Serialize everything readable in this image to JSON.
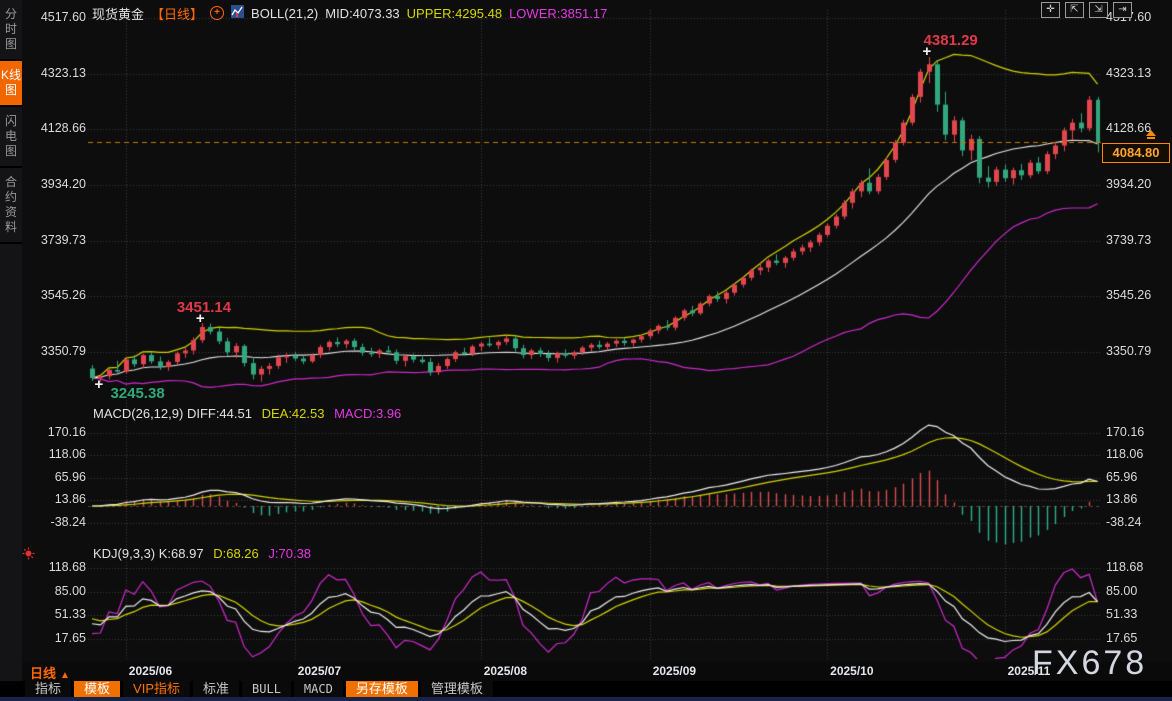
{
  "header": {
    "symbol": "现货黄金",
    "period_tag": "【日线】",
    "boll_title": "BOLL(21,2)",
    "boll_mid": "MID:4073.33",
    "boll_upper": "UPPER:4295.48",
    "boll_lower": "LOWER:3851.17"
  },
  "sidebar": {
    "items": [
      {
        "label": "分时图",
        "active": false
      },
      {
        "label": "K线图",
        "active": true
      },
      {
        "label": "闪电图",
        "active": false
      },
      {
        "label": "合约资料",
        "active": false
      }
    ]
  },
  "axes": {
    "price": [
      "4517.60",
      "4323.13",
      "4128.66",
      "3934.20",
      "3739.73",
      "3545.26",
      "3350.79"
    ],
    "macd": [
      "170.16",
      "118.06",
      "65.96",
      "13.86",
      "-38.24"
    ],
    "kdj": [
      "118.68",
      "85.00",
      "51.33",
      "17.65"
    ]
  },
  "panels": {
    "macd": {
      "title": "MACD(26,12,9)",
      "diff": "DIFF:44.51",
      "dea": "DEA:42.53",
      "macd": "MACD:3.96"
    },
    "kdj": {
      "title": "KDJ(9,3,3)",
      "k": "K:68.97",
      "d": "D:68.26",
      "j": "J:70.38"
    }
  },
  "annotations": {
    "high_label": "4381.29",
    "swing_high_label": "3451.14",
    "swing_low_label": "3245.38",
    "last_price_label": "4084.80"
  },
  "x_axis": {
    "period_label": "日线",
    "period_arrow": "▲",
    "months": [
      "2025/06",
      "2025/07",
      "2025/08",
      "2025/09",
      "2025/10",
      "2025/11"
    ]
  },
  "bottom_bar": {
    "items": [
      {
        "label": "指标",
        "active": false,
        "vip": false,
        "mono": false
      },
      {
        "label": "模板",
        "active": true,
        "vip": false,
        "mono": false
      },
      {
        "label": "VIP指标",
        "active": false,
        "vip": true,
        "mono": false
      },
      {
        "label": "标准",
        "active": false,
        "vip": false,
        "mono": false
      },
      {
        "label": "BULL",
        "active": false,
        "vip": false,
        "mono": true
      },
      {
        "label": "MACD",
        "active": false,
        "vip": false,
        "mono": true
      },
      {
        "label": "另存模板",
        "active": true,
        "vip": false,
        "mono": false
      },
      {
        "label": "管理模板",
        "active": false,
        "vip": false,
        "mono": false
      }
    ]
  },
  "toolbar_icons": [
    "crosshair-icon",
    "zoom-area-left-icon",
    "zoom-area-right-icon",
    "pan-right-icon"
  ],
  "watermark": "FX678",
  "colors": {
    "accent_orange": "#ff6a00",
    "up_candle": "#e2464f",
    "down_candle": "#33a77d",
    "boll_upper_yellow": "#d4d400",
    "boll_mid_white": "#e6e6e6",
    "boll_lower_magenta": "#cc2acc",
    "grid": "#3b3b3b",
    "last_price_line": "#c87800"
  },
  "chart_data": {
    "type": "candlestick",
    "title": "现货黄金 日线 (Spot Gold Daily)",
    "price_gridlines": [
      4517.6,
      4323.13,
      4128.66,
      3934.2,
      3739.73,
      3545.26,
      3350.79
    ],
    "macd_gridlines": [
      170.16,
      118.06,
      65.96,
      13.86,
      -38.24
    ],
    "kdj_gridlines": [
      118.68,
      85.0,
      51.33,
      17.65
    ],
    "months": [
      "2025/06",
      "2025/07",
      "2025/08",
      "2025/09",
      "2025/10",
      "2025/11"
    ],
    "month_start_indices": [
      4,
      24,
      46,
      66,
      87,
      108
    ],
    "boll": {
      "period": 21,
      "mult": 2,
      "mid": 4073.33,
      "upper": 4295.48,
      "lower": 3851.17
    },
    "macd": {
      "params": [
        26,
        12,
        9
      ],
      "diff": 44.51,
      "dea": 42.53,
      "hist": 3.96
    },
    "kdj": {
      "params": [
        9,
        3,
        3
      ],
      "k": 68.97,
      "d": 68.26,
      "j": 70.38
    },
    "last_price": 4084.8,
    "key_points": {
      "high": {
        "index": 99,
        "value": 4381.29
      },
      "swing_high": {
        "index": 13,
        "value": 3451.14
      },
      "swing_low": {
        "index": 1,
        "value": 3245.38
      }
    },
    "ohlc": [
      [
        3293,
        3305,
        3250,
        3260
      ],
      [
        3260,
        3270,
        3245.38,
        3266
      ],
      [
        3266,
        3292,
        3255,
        3288
      ],
      [
        3288,
        3320,
        3278,
        3282
      ],
      [
        3282,
        3330,
        3275,
        3325
      ],
      [
        3325,
        3340,
        3298,
        3308
      ],
      [
        3308,
        3345,
        3295,
        3340
      ],
      [
        3340,
        3352,
        3310,
        3318
      ],
      [
        3318,
        3335,
        3288,
        3298
      ],
      [
        3298,
        3322,
        3285,
        3316
      ],
      [
        3316,
        3352,
        3305,
        3346
      ],
      [
        3346,
        3368,
        3330,
        3356
      ],
      [
        3356,
        3402,
        3342,
        3392
      ],
      [
        3392,
        3451.14,
        3382,
        3438
      ],
      [
        3438,
        3450,
        3412,
        3422
      ],
      [
        3422,
        3436,
        3378,
        3388
      ],
      [
        3388,
        3400,
        3338,
        3350
      ],
      [
        3350,
        3382,
        3330,
        3372
      ],
      [
        3372,
        3378,
        3300,
        3312
      ],
      [
        3312,
        3332,
        3255,
        3272
      ],
      [
        3272,
        3302,
        3247,
        3292
      ],
      [
        3292,
        3312,
        3272,
        3302
      ],
      [
        3302,
        3342,
        3292,
        3332
      ],
      [
        3332,
        3348,
        3312,
        3338
      ],
      [
        3338,
        3352,
        3320,
        3328
      ],
      [
        3328,
        3340,
        3308,
        3318
      ],
      [
        3318,
        3346,
        3312,
        3340
      ],
      [
        3340,
        3376,
        3330,
        3368
      ],
      [
        3368,
        3392,
        3356,
        3386
      ],
      [
        3386,
        3402,
        3368,
        3378
      ],
      [
        3378,
        3396,
        3364,
        3390
      ],
      [
        3390,
        3398,
        3358,
        3368
      ],
      [
        3368,
        3380,
        3338,
        3348
      ],
      [
        3348,
        3366,
        3334,
        3344
      ],
      [
        3344,
        3362,
        3330,
        3356
      ],
      [
        3356,
        3372,
        3340,
        3350
      ],
      [
        3350,
        3360,
        3308,
        3320
      ],
      [
        3320,
        3342,
        3300,
        3336
      ],
      [
        3336,
        3346,
        3314,
        3324
      ],
      [
        3324,
        3340,
        3310,
        3316
      ],
      [
        3316,
        3330,
        3268,
        3280
      ],
      [
        3280,
        3312,
        3270,
        3302
      ],
      [
        3302,
        3332,
        3292,
        3326
      ],
      [
        3326,
        3356,
        3316,
        3350
      ],
      [
        3350,
        3366,
        3338,
        3344
      ],
      [
        3344,
        3376,
        3336,
        3370
      ],
      [
        3370,
        3386,
        3354,
        3380
      ],
      [
        3380,
        3402,
        3368,
        3374
      ],
      [
        3374,
        3392,
        3360,
        3386
      ],
      [
        3386,
        3410,
        3376,
        3398
      ],
      [
        3398,
        3406,
        3352,
        3364
      ],
      [
        3364,
        3376,
        3328,
        3340
      ],
      [
        3340,
        3362,
        3326,
        3356
      ],
      [
        3356,
        3366,
        3334,
        3344
      ],
      [
        3344,
        3356,
        3318,
        3330
      ],
      [
        3330,
        3352,
        3314,
        3346
      ],
      [
        3346,
        3360,
        3330,
        3338
      ],
      [
        3338,
        3356,
        3326,
        3350
      ],
      [
        3350,
        3372,
        3340,
        3366
      ],
      [
        3366,
        3382,
        3352,
        3376
      ],
      [
        3376,
        3390,
        3360,
        3368
      ],
      [
        3368,
        3386,
        3356,
        3380
      ],
      [
        3380,
        3396,
        3368,
        3390
      ],
      [
        3390,
        3400,
        3372,
        3382
      ],
      [
        3382,
        3398,
        3370,
        3394
      ],
      [
        3394,
        3412,
        3384,
        3406
      ],
      [
        3406,
        3432,
        3396,
        3426
      ],
      [
        3426,
        3448,
        3414,
        3442
      ],
      [
        3442,
        3462,
        3426,
        3436
      ],
      [
        3436,
        3476,
        3426,
        3470
      ],
      [
        3470,
        3502,
        3460,
        3496
      ],
      [
        3496,
        3512,
        3476,
        3486
      ],
      [
        3486,
        3526,
        3480,
        3520
      ],
      [
        3520,
        3552,
        3510,
        3546
      ],
      [
        3546,
        3562,
        3526,
        3536
      ],
      [
        3536,
        3566,
        3520,
        3558
      ],
      [
        3558,
        3592,
        3548,
        3586
      ],
      [
        3586,
        3616,
        3576,
        3610
      ],
      [
        3610,
        3642,
        3600,
        3636
      ],
      [
        3636,
        3662,
        3620,
        3646
      ],
      [
        3646,
        3676,
        3630,
        3670
      ],
      [
        3670,
        3692,
        3654,
        3662
      ],
      [
        3662,
        3686,
        3645,
        3680
      ],
      [
        3680,
        3712,
        3670,
        3702
      ],
      [
        3702,
        3726,
        3690,
        3716
      ],
      [
        3716,
        3742,
        3700,
        3734
      ],
      [
        3734,
        3768,
        3722,
        3760
      ],
      [
        3760,
        3800,
        3752,
        3792
      ],
      [
        3792,
        3832,
        3782,
        3824
      ],
      [
        3824,
        3882,
        3814,
        3872
      ],
      [
        3872,
        3922,
        3852,
        3912
      ],
      [
        3912,
        3952,
        3892,
        3942
      ],
      [
        3942,
        3992,
        3902,
        3912
      ],
      [
        3912,
        3972,
        3902,
        3962
      ],
      [
        3962,
        4032,
        3952,
        4022
      ],
      [
        4022,
        4092,
        4012,
        4082
      ],
      [
        4082,
        4162,
        4072,
        4152
      ],
      [
        4152,
        4252,
        4142,
        4242
      ],
      [
        4242,
        4340,
        4222,
        4330
      ],
      [
        4330,
        4381.29,
        4290,
        4356
      ],
      [
        4356,
        4368,
        4190,
        4215
      ],
      [
        4215,
        4260,
        4090,
        4110
      ],
      [
        4110,
        4175,
        4085,
        4160
      ],
      [
        4160,
        4170,
        4035,
        4055
      ],
      [
        4055,
        4110,
        4020,
        4095
      ],
      [
        4095,
        4105,
        3940,
        3960
      ],
      [
        3960,
        4000,
        3925,
        3945
      ],
      [
        3945,
        3998,
        3932,
        3988
      ],
      [
        3988,
        4005,
        3945,
        3958
      ],
      [
        3958,
        3995,
        3935,
        3986
      ],
      [
        3986,
        4008,
        3952,
        3968
      ],
      [
        3968,
        4022,
        3958,
        4012
      ],
      [
        4012,
        4032,
        3972,
        3982
      ],
      [
        3982,
        4052,
        3972,
        4042
      ],
      [
        4042,
        4085,
        4025,
        4072
      ],
      [
        4072,
        4135,
        4052,
        4125
      ],
      [
        4125,
        4165,
        4092,
        4152
      ],
      [
        4152,
        4185,
        4118,
        4132
      ],
      [
        4132,
        4245,
        4122,
        4232
      ],
      [
        4232,
        4242,
        4048,
        4084.8
      ]
    ]
  }
}
